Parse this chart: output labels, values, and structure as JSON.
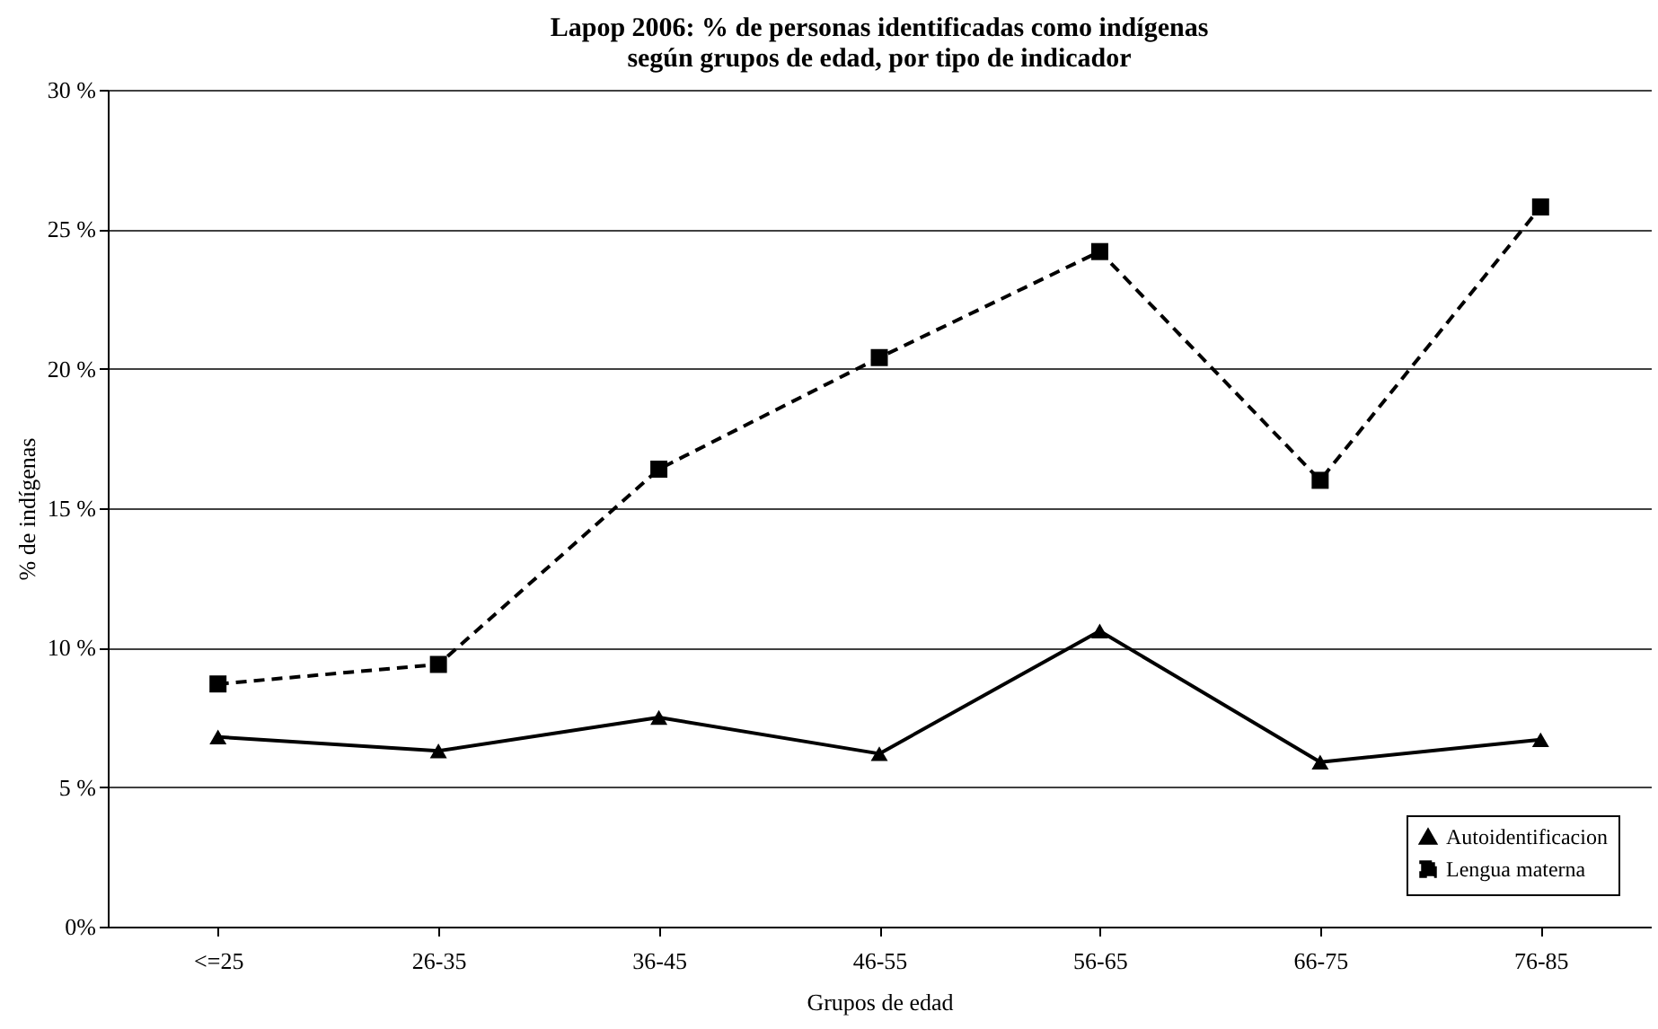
{
  "chart_data": {
    "type": "line",
    "title": "Lapop 2006: % de personas identificadas como indígenas\nsegún grupos de edad, por tipo de indicador",
    "xlabel": "Grupos de edad",
    "ylabel": "% de indígenas",
    "categories": [
      "<=25",
      "26-35",
      "36-45",
      "46-55",
      "56-65",
      "66-75",
      "76-85"
    ],
    "series": [
      {
        "name": "Autoidentificacion",
        "color": "#000000",
        "marker": "triangle",
        "line_style": "solid",
        "values": [
          6.8,
          6.3,
          7.5,
          6.2,
          10.6,
          5.9,
          6.7
        ]
      },
      {
        "name": "Lengua materna",
        "color": "#000000",
        "marker": "square",
        "line_style": "dashed",
        "values": [
          8.7,
          9.4,
          16.4,
          20.4,
          24.2,
          16.0,
          25.8
        ]
      }
    ],
    "ylim": [
      0,
      30
    ],
    "yticks": [
      {
        "value": 0,
        "label": "0%"
      },
      {
        "value": 5,
        "label": "5 %"
      },
      {
        "value": 10,
        "label": "10 %"
      },
      {
        "value": 15,
        "label": "15 %"
      },
      {
        "value": 20,
        "label": "20 %"
      },
      {
        "value": 25,
        "label": "25 %"
      },
      {
        "value": 30,
        "label": "30 %"
      }
    ],
    "grid": "y",
    "legend": "bottom right"
  }
}
